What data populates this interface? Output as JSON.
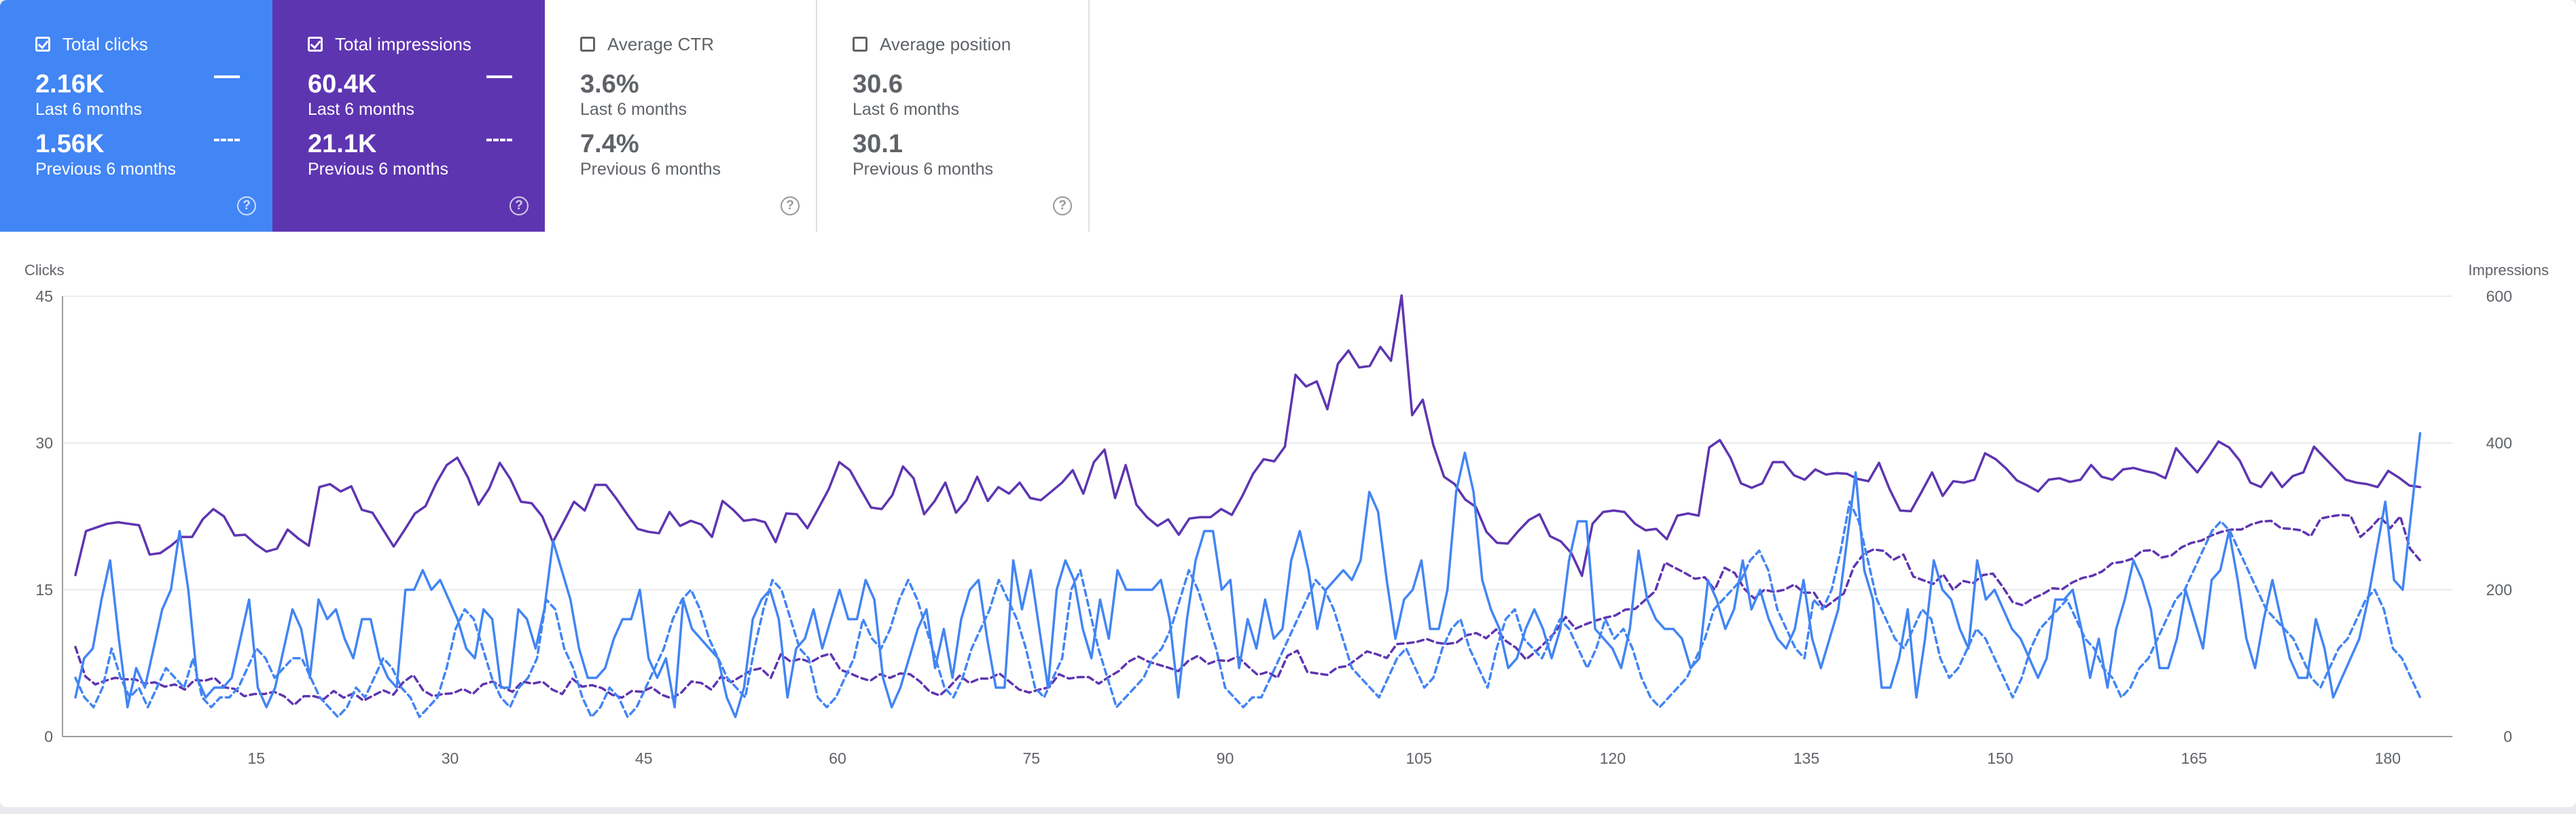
{
  "metrics": [
    {
      "label": "Total clicks",
      "checked": true,
      "current_value": "2.16K",
      "current_period": "Last 6 months",
      "previous_value": "1.56K",
      "previous_period": "Previous 6 months",
      "color": "#4285f4"
    },
    {
      "label": "Total impressions",
      "checked": true,
      "current_value": "60.4K",
      "current_period": "Last 6 months",
      "previous_value": "21.1K",
      "previous_period": "Previous 6 months",
      "color": "#5e35b1"
    },
    {
      "label": "Average CTR",
      "checked": false,
      "current_value": "3.6%",
      "current_period": "Last 6 months",
      "previous_value": "7.4%",
      "previous_period": "Previous 6 months"
    },
    {
      "label": "Average position",
      "checked": false,
      "current_value": "30.6",
      "current_period": "Last 6 months",
      "previous_value": "30.1",
      "previous_period": "Previous 6 months"
    }
  ],
  "help_icon": "help-circle-icon",
  "chart_data": {
    "type": "line",
    "ylabel_left": "Clicks",
    "ylabel_right": "Impressions",
    "ylim_left": [
      0,
      45
    ],
    "ylim_right": [
      0,
      600
    ],
    "yticks_left": [
      "0",
      "15",
      "30",
      "45"
    ],
    "yticks_right": [
      "0",
      "200",
      "400",
      "600"
    ],
    "xlim": [
      0,
      185
    ],
    "xticks": [
      "15",
      "30",
      "45",
      "60",
      "75",
      "90",
      "105",
      "120",
      "135",
      "150",
      "165",
      "180"
    ],
    "grid": true,
    "series": [
      {
        "axis": "right",
        "color": "#5e35b1",
        "dash": "solid",
        "values": [
          220,
          280,
          285,
          290,
          292,
          290,
          288,
          248,
          250,
          260,
          272,
          272,
          296,
          310,
          300,
          274,
          275,
          262,
          252,
          256,
          282,
          270,
          260,
          340,
          344,
          334,
          341,
          309,
          305,
          282,
          259,
          281,
          304,
          314,
          345,
          370,
          380,
          353,
          316,
          338,
          373,
          351,
          320,
          318,
          300,
          265,
          292,
          320,
          308,
          343,
          343,
          324,
          303,
          283,
          279,
          277,
          306,
          287,
          294,
          289,
          272,
          321,
          309,
          294,
          296,
          292,
          265,
          304,
          303,
          284,
          310,
          337,
          374,
          363,
          337,
          312,
          310,
          329,
          368,
          352,
          303,
          321,
          346,
          305,
          322,
          354,
          321,
          340,
          331,
          346,
          325,
          322,
          334,
          346,
          363,
          331,
          374,
          391,
          325,
          370,
          316,
          299,
          287,
          296,
          275,
          297,
          299,
          299,
          310,
          302,
          328,
          358,
          378,
          375,
          395,
          493,
          477,
          484,
          446,
          508,
          526,
          503,
          505,
          531,
          512,
          601,
          438,
          459,
          397,
          354,
          344,
          323,
          313,
          279,
          264,
          263,
          280,
          295,
          303,
          273,
          266,
          250,
          219,
          290,
          306,
          308,
          306,
          290,
          281,
          283,
          269,
          301,
          304,
          301,
          394,
          404,
          380,
          345,
          339,
          345,
          374,
          374,
          356,
          350,
          364,
          357,
          359,
          358,
          351,
          348,
          373,
          337,
          308,
          307,
          333,
          360,
          328,
          348,
          346,
          350,
          386,
          378,
          365,
          349,
          342,
          334,
          350,
          352,
          347,
          350,
          370,
          354,
          350,
          364,
          366,
          362,
          359,
          352,
          393,
          376,
          360,
          380,
          402,
          394,
          376,
          346,
          340,
          360,
          340,
          355,
          360,
          395,
          380,
          365,
          350,
          346,
          344,
          340,
          362,
          353,
          342,
          340
        ]
      },
      {
        "axis": "right",
        "color": "#5e35b1",
        "dash": "dashed",
        "values": [
          122,
          82,
          71,
          76,
          80,
          78,
          78,
          72,
          74,
          68,
          71,
          64,
          77,
          76,
          80,
          67,
          65,
          55,
          58,
          58,
          61,
          55,
          43,
          55,
          55,
          51,
          62,
          53,
          59,
          49,
          56,
          63,
          57,
          74,
          84,
          63,
          55,
          58,
          59,
          65,
          58,
          71,
          75,
          67,
          61,
          75,
          72,
          75,
          64,
          58,
          79,
          68,
          70,
          66,
          57,
          53,
          62,
          61,
          67,
          57,
          52,
          60,
          75,
          73,
          64,
          82,
          74,
          82,
          90,
          93,
          80,
          112,
          102,
          106,
          101,
          109,
          113,
          91,
          86,
          80,
          76,
          85,
          80,
          86,
          85,
          75,
          61,
          56,
          68,
          83,
          73,
          79,
          79,
          86,
          75,
          64,
          60,
          64,
          67,
          85,
          79,
          81,
          81,
          72,
          81,
          89,
          102,
          109,
          102,
          98,
          94,
          89,
          103,
          110,
          99,
          104,
          103,
          109,
          96,
          84,
          88,
          80,
          110,
          117,
          88,
          86,
          84,
          94,
          96,
          106,
          116,
          112,
          107,
          126,
          127,
          129,
          133,
          128,
          126,
          128,
          138,
          141,
          134,
          146,
          130,
          121,
          105,
          116,
          129,
          143,
          163,
          147,
          153,
          158,
          162,
          165,
          173,
          174,
          186,
          198,
          237,
          230,
          223,
          215,
          217,
          200,
          230,
          223,
          201,
          188,
          200,
          197,
          200,
          207,
          196,
          196,
          175,
          185,
          195,
          231,
          249,
          255,
          253,
          241,
          248,
          218,
          213,
          208,
          221,
          200,
          212,
          209,
          220,
          222,
          204,
          183,
          179,
          188,
          194,
          202,
          201,
          210,
          216,
          219,
          225,
          236,
          238,
          242,
          253,
          254,
          244,
          247,
          258,
          264,
          267,
          274,
          279,
          282,
          282,
          289,
          293,
          294,
          284,
          283,
          281,
          273,
          297,
          300,
          302,
          301,
          272,
          284,
          299,
          284,
          300,
          256,
          240
        ]
      },
      {
        "axis": "left",
        "color": "#4285f4",
        "dash": "solid",
        "values": [
          4,
          8,
          9,
          14,
          18,
          10,
          3,
          7,
          5,
          9,
          13,
          15,
          21,
          15,
          6,
          4,
          5,
          5,
          6,
          10,
          14,
          5,
          3,
          5,
          9,
          13,
          11,
          6,
          14,
          12,
          13,
          10,
          8,
          12,
          12,
          8,
          6,
          5,
          15,
          15,
          17,
          15,
          16,
          14,
          12,
          9,
          8,
          13,
          12,
          5,
          5,
          13,
          12,
          9,
          13,
          20,
          17,
          14,
          9,
          6,
          6,
          7,
          10,
          12,
          12,
          15,
          8,
          6,
          8,
          3,
          14,
          11,
          10,
          9,
          8,
          4,
          2,
          5,
          12,
          14,
          15,
          12,
          4,
          9,
          10,
          13,
          9,
          12,
          15,
          12,
          12,
          16,
          14,
          6,
          3,
          5,
          8,
          11,
          13,
          7,
          11,
          6,
          12,
          15,
          16,
          10,
          5,
          5,
          18,
          13,
          17,
          11,
          5,
          15,
          18,
          16,
          11,
          8,
          14,
          10,
          17,
          15,
          15,
          15,
          15,
          16,
          12,
          4,
          12,
          18,
          21,
          21,
          15,
          16,
          7,
          12,
          9,
          14,
          10,
          11,
          18,
          21,
          17,
          11,
          15,
          16,
          17,
          16,
          18,
          25,
          23,
          16,
          10,
          14,
          15,
          18,
          11,
          11,
          15,
          25,
          29,
          25,
          16,
          13,
          11,
          7,
          8,
          11,
          13,
          11,
          8,
          11,
          18,
          22,
          22,
          11,
          10,
          9,
          7,
          11,
          19,
          14,
          12,
          11,
          11,
          10,
          7,
          8,
          16,
          14,
          11,
          13,
          18,
          13,
          15,
          12,
          10,
          9,
          11,
          16,
          10,
          7,
          10,
          13,
          20,
          27,
          17,
          14,
          5,
          5,
          8,
          13,
          4,
          10,
          18,
          15,
          14,
          11,
          9,
          18,
          14,
          15,
          13,
          11,
          10,
          8,
          6,
          8,
          14,
          14,
          15,
          11,
          6,
          10,
          5,
          11,
          14,
          18,
          16,
          13,
          7,
          7,
          10,
          15,
          12,
          9,
          16,
          17,
          21,
          16,
          10,
          7,
          12,
          16,
          12,
          8,
          6,
          6,
          12,
          9,
          4,
          6,
          8,
          10,
          14,
          19,
          24,
          16,
          15,
          23,
          31
        ]
      },
      {
        "axis": "left",
        "color": "#4285f4",
        "dash": "dashed",
        "values": [
          6,
          4,
          3,
          5,
          9,
          6,
          4,
          5,
          3,
          5,
          7,
          6,
          5,
          8,
          4,
          3,
          4,
          4,
          5,
          7,
          9,
          8,
          6,
          7,
          8,
          8,
          6,
          4,
          3,
          2,
          3,
          5,
          4,
          6,
          8,
          7,
          5,
          4,
          2,
          3,
          4,
          7,
          11,
          13,
          12,
          9,
          6,
          4,
          3,
          5,
          6,
          8,
          14,
          13,
          9,
          7,
          4,
          2,
          3,
          5,
          4,
          2,
          3,
          5,
          7,
          9,
          12,
          14,
          15,
          13,
          10,
          8,
          6,
          5,
          4,
          9,
          13,
          16,
          15,
          12,
          9,
          8,
          4,
          3,
          4,
          6,
          8,
          12,
          10,
          9,
          11,
          14,
          16,
          14,
          11,
          8,
          5,
          4,
          6,
          9,
          11,
          13,
          16,
          14,
          12,
          9,
          5,
          4,
          6,
          8,
          15,
          17,
          13,
          9,
          6,
          3,
          4,
          5,
          6,
          8,
          9,
          11,
          14,
          17,
          15,
          12,
          9,
          5,
          4,
          3,
          4,
          4,
          6,
          8,
          10,
          12,
          14,
          16,
          15,
          13,
          10,
          7,
          6,
          5,
          4,
          6,
          8,
          9,
          7,
          5,
          6,
          9,
          11,
          12,
          9,
          7,
          5,
          9,
          12,
          13,
          10,
          9,
          8,
          10,
          12,
          11,
          9,
          7,
          9,
          12,
          10,
          11,
          9,
          6,
          4,
          3,
          4,
          5,
          6,
          8,
          10,
          13,
          14,
          15,
          16,
          18,
          19,
          17,
          13,
          11,
          9,
          8,
          14,
          13,
          15,
          19,
          24,
          22,
          18,
          14,
          12,
          10,
          9,
          11,
          13,
          12,
          8,
          6,
          7,
          9,
          11,
          10,
          8,
          6,
          4,
          6,
          9,
          11,
          12,
          13,
          14,
          12,
          10,
          9,
          7,
          6,
          4,
          5,
          7,
          8,
          10,
          12,
          14,
          15,
          17,
          19,
          21,
          22,
          21,
          19,
          17,
          15,
          13,
          12,
          11,
          10,
          8,
          6,
          5,
          7,
          9,
          10,
          12,
          14,
          15,
          13,
          9,
          8,
          6,
          4
        ]
      }
    ]
  }
}
